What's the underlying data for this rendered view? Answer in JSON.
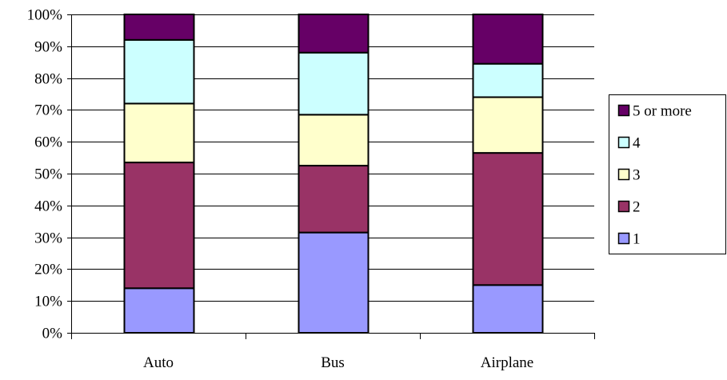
{
  "chart_data": {
    "type": "bar",
    "stacked": true,
    "percent": true,
    "categories": [
      "Auto",
      "Bus",
      "Airplane"
    ],
    "series": [
      {
        "name": "1",
        "color": "#9999FF",
        "values": [
          14,
          31.5,
          15
        ]
      },
      {
        "name": "2",
        "color": "#993366",
        "values": [
          39.5,
          21,
          41.5
        ]
      },
      {
        "name": "3",
        "color": "#FFFFCC",
        "values": [
          18.5,
          16,
          17.5
        ]
      },
      {
        "name": "4",
        "color": "#CCFFFF",
        "values": [
          20,
          19.5,
          10.5
        ]
      },
      {
        "name": "5 or more",
        "color": "#660066",
        "values": [
          8,
          12,
          15.5
        ]
      }
    ],
    "ylim": [
      0,
      100
    ],
    "yticks": [
      0,
      10,
      20,
      30,
      40,
      50,
      60,
      70,
      80,
      90,
      100
    ],
    "ytick_labels": [
      "0%",
      "10%",
      "20%",
      "30%",
      "40%",
      "50%",
      "60%",
      "70%",
      "80%",
      "90%",
      "100%"
    ],
    "grid": true,
    "legend_position": "right",
    "legend_order": [
      "5 or more",
      "4",
      "3",
      "2",
      "1"
    ],
    "title": "",
    "xlabel": "",
    "ylabel": ""
  }
}
